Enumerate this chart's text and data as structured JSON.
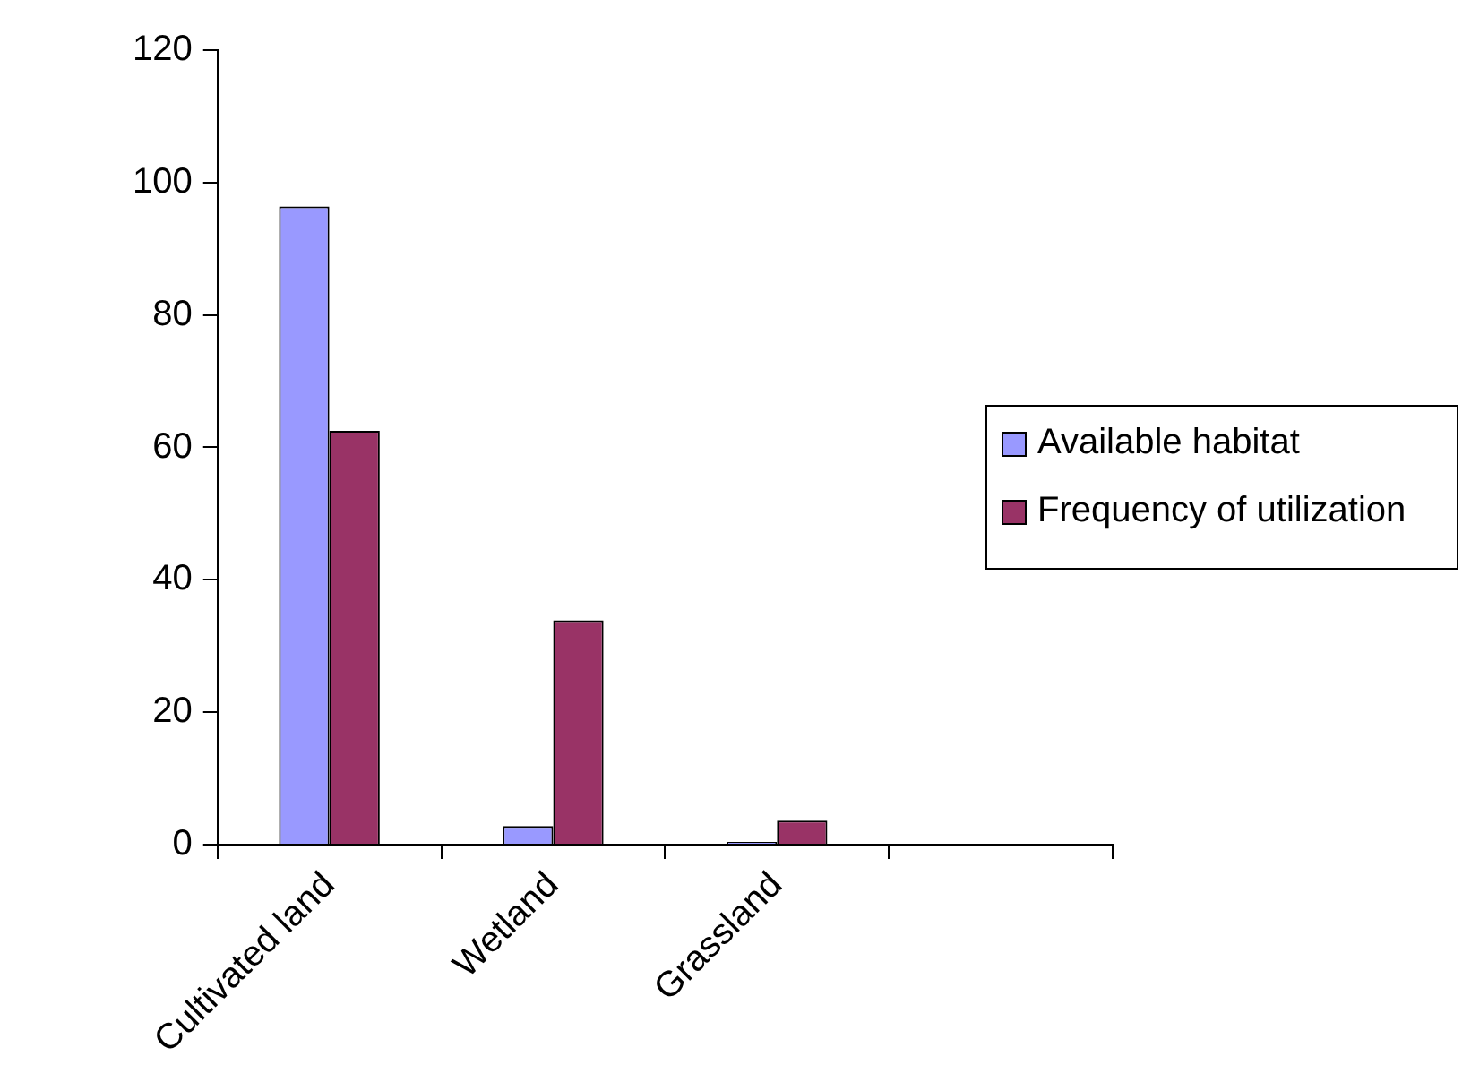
{
  "chart_data": {
    "type": "bar",
    "categories": [
      "Cultivated land",
      "Wetland",
      "Grassland",
      null
    ],
    "series": [
      {
        "name": "Available habitat",
        "color": "#9999ff",
        "values": [
          96.4,
          2.8,
          0.4,
          null
        ]
      },
      {
        "name": "Frequency of utilization",
        "color": "#993366",
        "values": [
          62.5,
          33.9,
          3.6,
          null
        ]
      }
    ],
    "ylim": [
      0,
      120
    ],
    "yticks": [
      0,
      20,
      40,
      60,
      80,
      100,
      120
    ],
    "grid": false,
    "legend": "right"
  }
}
